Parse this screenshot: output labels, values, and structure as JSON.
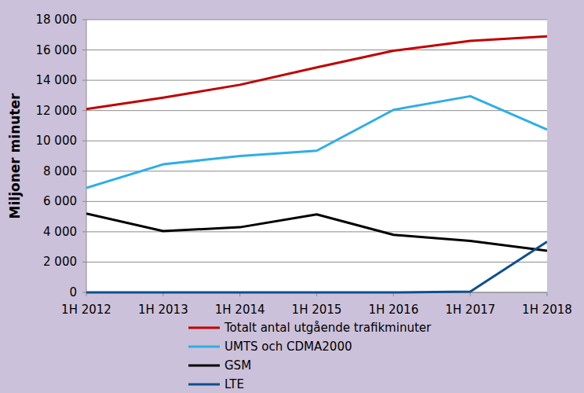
{
  "chart_data": {
    "type": "line",
    "y_label": "Miljoner minuter",
    "categories": [
      "1H 2012",
      "1H 2013",
      "1H 2014",
      "1H 2015",
      "1H 2016",
      "1H 2017",
      "1H 2018"
    ],
    "series": [
      {
        "name": "Totalt antal utgående trafikminuter",
        "color": "#c00000",
        "values": [
          12100,
          12850,
          13700,
          14850,
          15950,
          16600,
          16900
        ]
      },
      {
        "name": "UMTS och CDMA2000",
        "color": "#2eaee6",
        "values": [
          6900,
          8450,
          9000,
          9350,
          12050,
          12950,
          10750
        ]
      },
      {
        "name": "GSM",
        "color": "#000000",
        "values": [
          5200,
          4050,
          4300,
          5150,
          3800,
          3400,
          2750
        ]
      },
      {
        "name": "LTE",
        "color": "#0e4f8c",
        "values": [
          0,
          0,
          0,
          0,
          0,
          50,
          3350
        ]
      }
    ],
    "ylim": [
      0,
      18000
    ],
    "yticks": [
      0,
      {
        "value": 2000,
        "label": "2 000"
      },
      {
        "value": 4000,
        "label": "4 000"
      },
      {
        "value": 6000,
        "label": "6 000"
      },
      {
        "value": 8000,
        "label": "8 000"
      },
      {
        "value": 10000,
        "label": "10 000"
      },
      {
        "value": 12000,
        "label": "12 000"
      },
      {
        "value": 14000,
        "label": "14 000"
      },
      {
        "value": 16000,
        "label": "16 000"
      },
      {
        "value": 18000,
        "label": "18 000"
      }
    ],
    "grid": true,
    "legend": "bottom"
  }
}
